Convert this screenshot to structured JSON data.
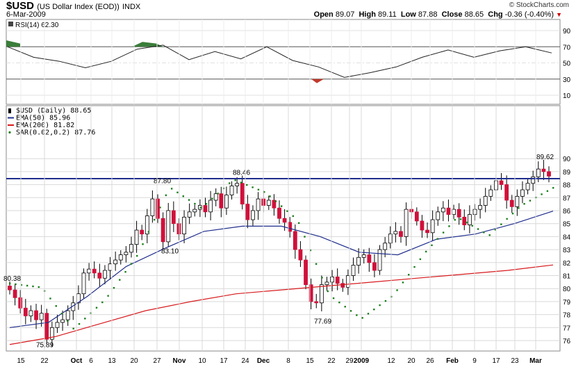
{
  "header": {
    "symbol": "$USD",
    "name": "(US Dollar Index (EOD))",
    "exchange": "INDX",
    "date": "6-Mar-2009",
    "brand": "© StockCharts.com",
    "open_label": "Open",
    "open": "89.07",
    "high_label": "High",
    "high": "89.11",
    "low_label": "Low",
    "low": "87.88",
    "close_label": "Close",
    "close": "88.65",
    "chg_label": "Chg",
    "chg": "-0.36 (-0.40%)",
    "chg_arrow": "▼"
  },
  "rsi_panel": {
    "label": "RSI(14) 62.30",
    "ticks": [
      90,
      70,
      50,
      30,
      10
    ],
    "overbought": 70,
    "oversold": 30,
    "mid": 50,
    "color_overbought": "#3a7d3a",
    "color_oversold": "#c0392b"
  },
  "price_panel": {
    "legend": [
      {
        "text": "$USD (Daily) 88.65",
        "color": "#000000",
        "marker": "candle"
      },
      {
        "text": "EMA(50) 85.96",
        "color": "#1f2d8c",
        "marker": "line"
      },
      {
        "text": "EMA(200) 81.82",
        "color": "#d7191c",
        "marker": "line"
      },
      {
        "text": "SAR(0.02,0.2) 87.76",
        "color": "#1a7f1a",
        "marker": "dot"
      }
    ],
    "y_ticks": [
      76,
      77,
      78,
      79,
      80,
      81,
      82,
      83,
      84,
      85,
      86,
      87,
      88,
      89,
      90
    ],
    "ylim": [
      75.4,
      90.5
    ],
    "resistance": 88.46,
    "annotations": [
      "80.38",
      "75.89",
      "87.80",
      "83.10",
      "88.46",
      "77.69",
      "89.62"
    ],
    "x_labels": [
      "15",
      "22",
      "Oct",
      "6",
      "13",
      "20",
      "27",
      "Nov",
      "10",
      "17",
      "24",
      "Dec",
      "8",
      "15",
      "22",
      "29",
      "2009",
      "12",
      "20",
      "26",
      "Feb",
      "9",
      "17",
      "23",
      "Mar"
    ],
    "colors": {
      "up": "#ffffff",
      "down": "#d0103a",
      "wick": "#000000",
      "hline": "#1f2d8c",
      "grid": "#d9d9d9"
    }
  },
  "chart_data": {
    "type": "candlestick",
    "title": "$USD (US Dollar Index (EOD)) INDX",
    "x_range": [
      "2008-09-12",
      "2009-03-06"
    ],
    "ylim": [
      75.4,
      90.5
    ],
    "series": [
      {
        "name": "$USD (Daily)",
        "close": [
          79.9,
          79.3,
          78.5,
          77.9,
          78.3,
          77.6,
          78.1,
          76.1,
          77.0,
          77.4,
          77.6,
          78.3,
          78.9,
          79.6,
          81.2,
          81.5,
          81.2,
          80.8,
          81.4,
          81.9,
          82.2,
          82.6,
          82.8,
          83.4,
          84.5,
          84.2,
          85.6,
          86.9,
          85.4,
          83.6,
          86.0,
          85.0,
          84.2,
          85.5,
          85.9,
          86.1,
          86.4,
          85.9,
          86.8,
          87.3,
          86.2,
          87.2,
          87.9,
          88.1,
          86.5,
          85.3,
          86.0,
          86.9,
          86.4,
          86.8,
          86.2,
          85.4,
          85.1,
          84.4,
          83.0,
          82.2,
          80.3,
          79.0,
          78.9,
          80.3,
          80.5,
          80.9,
          80.4,
          80.1,
          81.0,
          81.8,
          82.4,
          82.6,
          82.0,
          81.4,
          83.0,
          83.5,
          84.2,
          84.4,
          84.0,
          86.1,
          85.9,
          85.2,
          84.5,
          84.3,
          85.3,
          85.9,
          86.2,
          85.7,
          86.1,
          85.5,
          84.9,
          85.7,
          86.1,
          86.4,
          87.1,
          87.6,
          88.3,
          88.0,
          86.8,
          86.3,
          87.1,
          87.6,
          88.1,
          88.6,
          89.2,
          89.0,
          88.65
        ]
      },
      {
        "name": "EMA(50)",
        "values": [
          77.0,
          77.4,
          79.4,
          81.7,
          83.1,
          84.4,
          84.8,
          84.8,
          84.0,
          82.8,
          82.6,
          83.8,
          84.2,
          85.0,
          85.96
        ]
      },
      {
        "name": "EMA(200)",
        "values": [
          75.7,
          76.3,
          77.3,
          78.3,
          79.0,
          79.6,
          79.9,
          80.2,
          80.5,
          80.8,
          81.1,
          81.4,
          81.82
        ]
      },
      {
        "name": "SAR(0.02,0.2)",
        "values": [
          80.4,
          80.1,
          76.9,
          79.2,
          82.6,
          87.8,
          86.2,
          88.4,
          87.4,
          85.3,
          79.5,
          77.7,
          79.5,
          82.8,
          85.5,
          84.1,
          86.4,
          87.76
        ]
      },
      {
        "name": "RSI(14)",
        "values": [
          70,
          57,
          52,
          44,
          52,
          67,
          72,
          54,
          64,
          55,
          70,
          53,
          45,
          32,
          38,
          45,
          57,
          66,
          57,
          65,
          70,
          62.3
        ]
      }
    ]
  }
}
